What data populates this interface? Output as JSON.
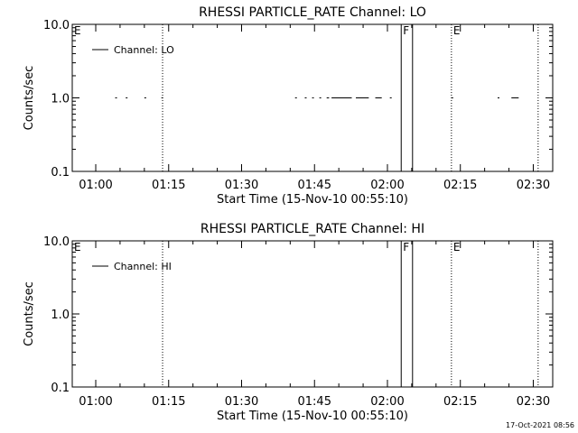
{
  "footer": {
    "timestamp": "17-Oct-2021 08:56"
  },
  "chart_data": [
    {
      "type": "scatter",
      "title": "RHESSI PARTICLE_RATE Channel: LO",
      "xlabel": "Start Time (15-Nov-10 00:55:10)",
      "ylabel": "Counts/sec",
      "yscale": "log",
      "ylim": [
        0.1,
        10.0
      ],
      "y_ticks": [
        "0.1",
        "1.0",
        "10.0"
      ],
      "xlim": [
        "00:55:10",
        "02:34:00"
      ],
      "x_ticks": [
        "01:00",
        "01:15",
        "01:30",
        "01:45",
        "02:00",
        "02:15",
        "02:30"
      ],
      "legend": {
        "label": "Channel: LO",
        "position": "top-left"
      },
      "series": [
        {
          "name": "Channel: LO",
          "segments": [
            [
              "01:04:00",
              "01:04:20"
            ],
            [
              "01:06:10",
              "01:06:30"
            ],
            [
              "01:10:00",
              "01:10:20"
            ],
            [
              "01:13:30",
              "01:13:50"
            ],
            [
              "01:41:00",
              "01:41:20"
            ],
            [
              "01:43:00",
              "01:43:20"
            ],
            [
              "01:44:30",
              "01:44:50"
            ],
            [
              "01:46:00",
              "01:46:20"
            ],
            [
              "01:47:30",
              "01:48:00"
            ],
            [
              "01:48:30",
              "01:52:40"
            ],
            [
              "01:53:30",
              "01:56:10"
            ],
            [
              "01:57:30",
              "01:58:50"
            ],
            [
              "02:00:30",
              "02:00:50"
            ],
            [
              "02:13:10",
              "02:13:30"
            ],
            [
              "02:22:40",
              "02:23:00"
            ],
            [
              "02:25:30",
              "02:27:00"
            ]
          ],
          "value": 1.0
        }
      ],
      "markers": [
        {
          "time": "00:55:10",
          "label": "E",
          "style": "dotted"
        },
        {
          "time": "01:13:45",
          "label": "",
          "style": "dotted"
        },
        {
          "time": "02:02:50",
          "label": "F",
          "style": "solid"
        },
        {
          "time": "02:05:10",
          "label": "",
          "style": "solid"
        },
        {
          "time": "02:13:10",
          "label": "E",
          "style": "dotted"
        },
        {
          "time": "02:31:00",
          "label": "",
          "style": "dotted"
        }
      ]
    },
    {
      "type": "scatter",
      "title": "RHESSI PARTICLE_RATE Channel: HI",
      "xlabel": "Start Time (15-Nov-10 00:55:10)",
      "ylabel": "Counts/sec",
      "yscale": "log",
      "ylim": [
        0.1,
        10.0
      ],
      "y_ticks": [
        "0.1",
        "1.0",
        "10.0"
      ],
      "xlim": [
        "00:55:10",
        "02:34:00"
      ],
      "x_ticks": [
        "01:00",
        "01:15",
        "01:30",
        "01:45",
        "02:00",
        "02:15",
        "02:30"
      ],
      "legend": {
        "label": "Channel: HI",
        "position": "top-left"
      },
      "series": [
        {
          "name": "Channel: HI",
          "segments": [],
          "value": 1.0
        }
      ],
      "markers": [
        {
          "time": "00:55:10",
          "label": "E",
          "style": "dotted"
        },
        {
          "time": "01:13:45",
          "label": "",
          "style": "dotted"
        },
        {
          "time": "02:02:50",
          "label": "F",
          "style": "solid"
        },
        {
          "time": "02:05:10",
          "label": "",
          "style": "solid"
        },
        {
          "time": "02:13:10",
          "label": "E",
          "style": "dotted"
        },
        {
          "time": "02:31:00",
          "label": "",
          "style": "dotted"
        }
      ]
    }
  ]
}
